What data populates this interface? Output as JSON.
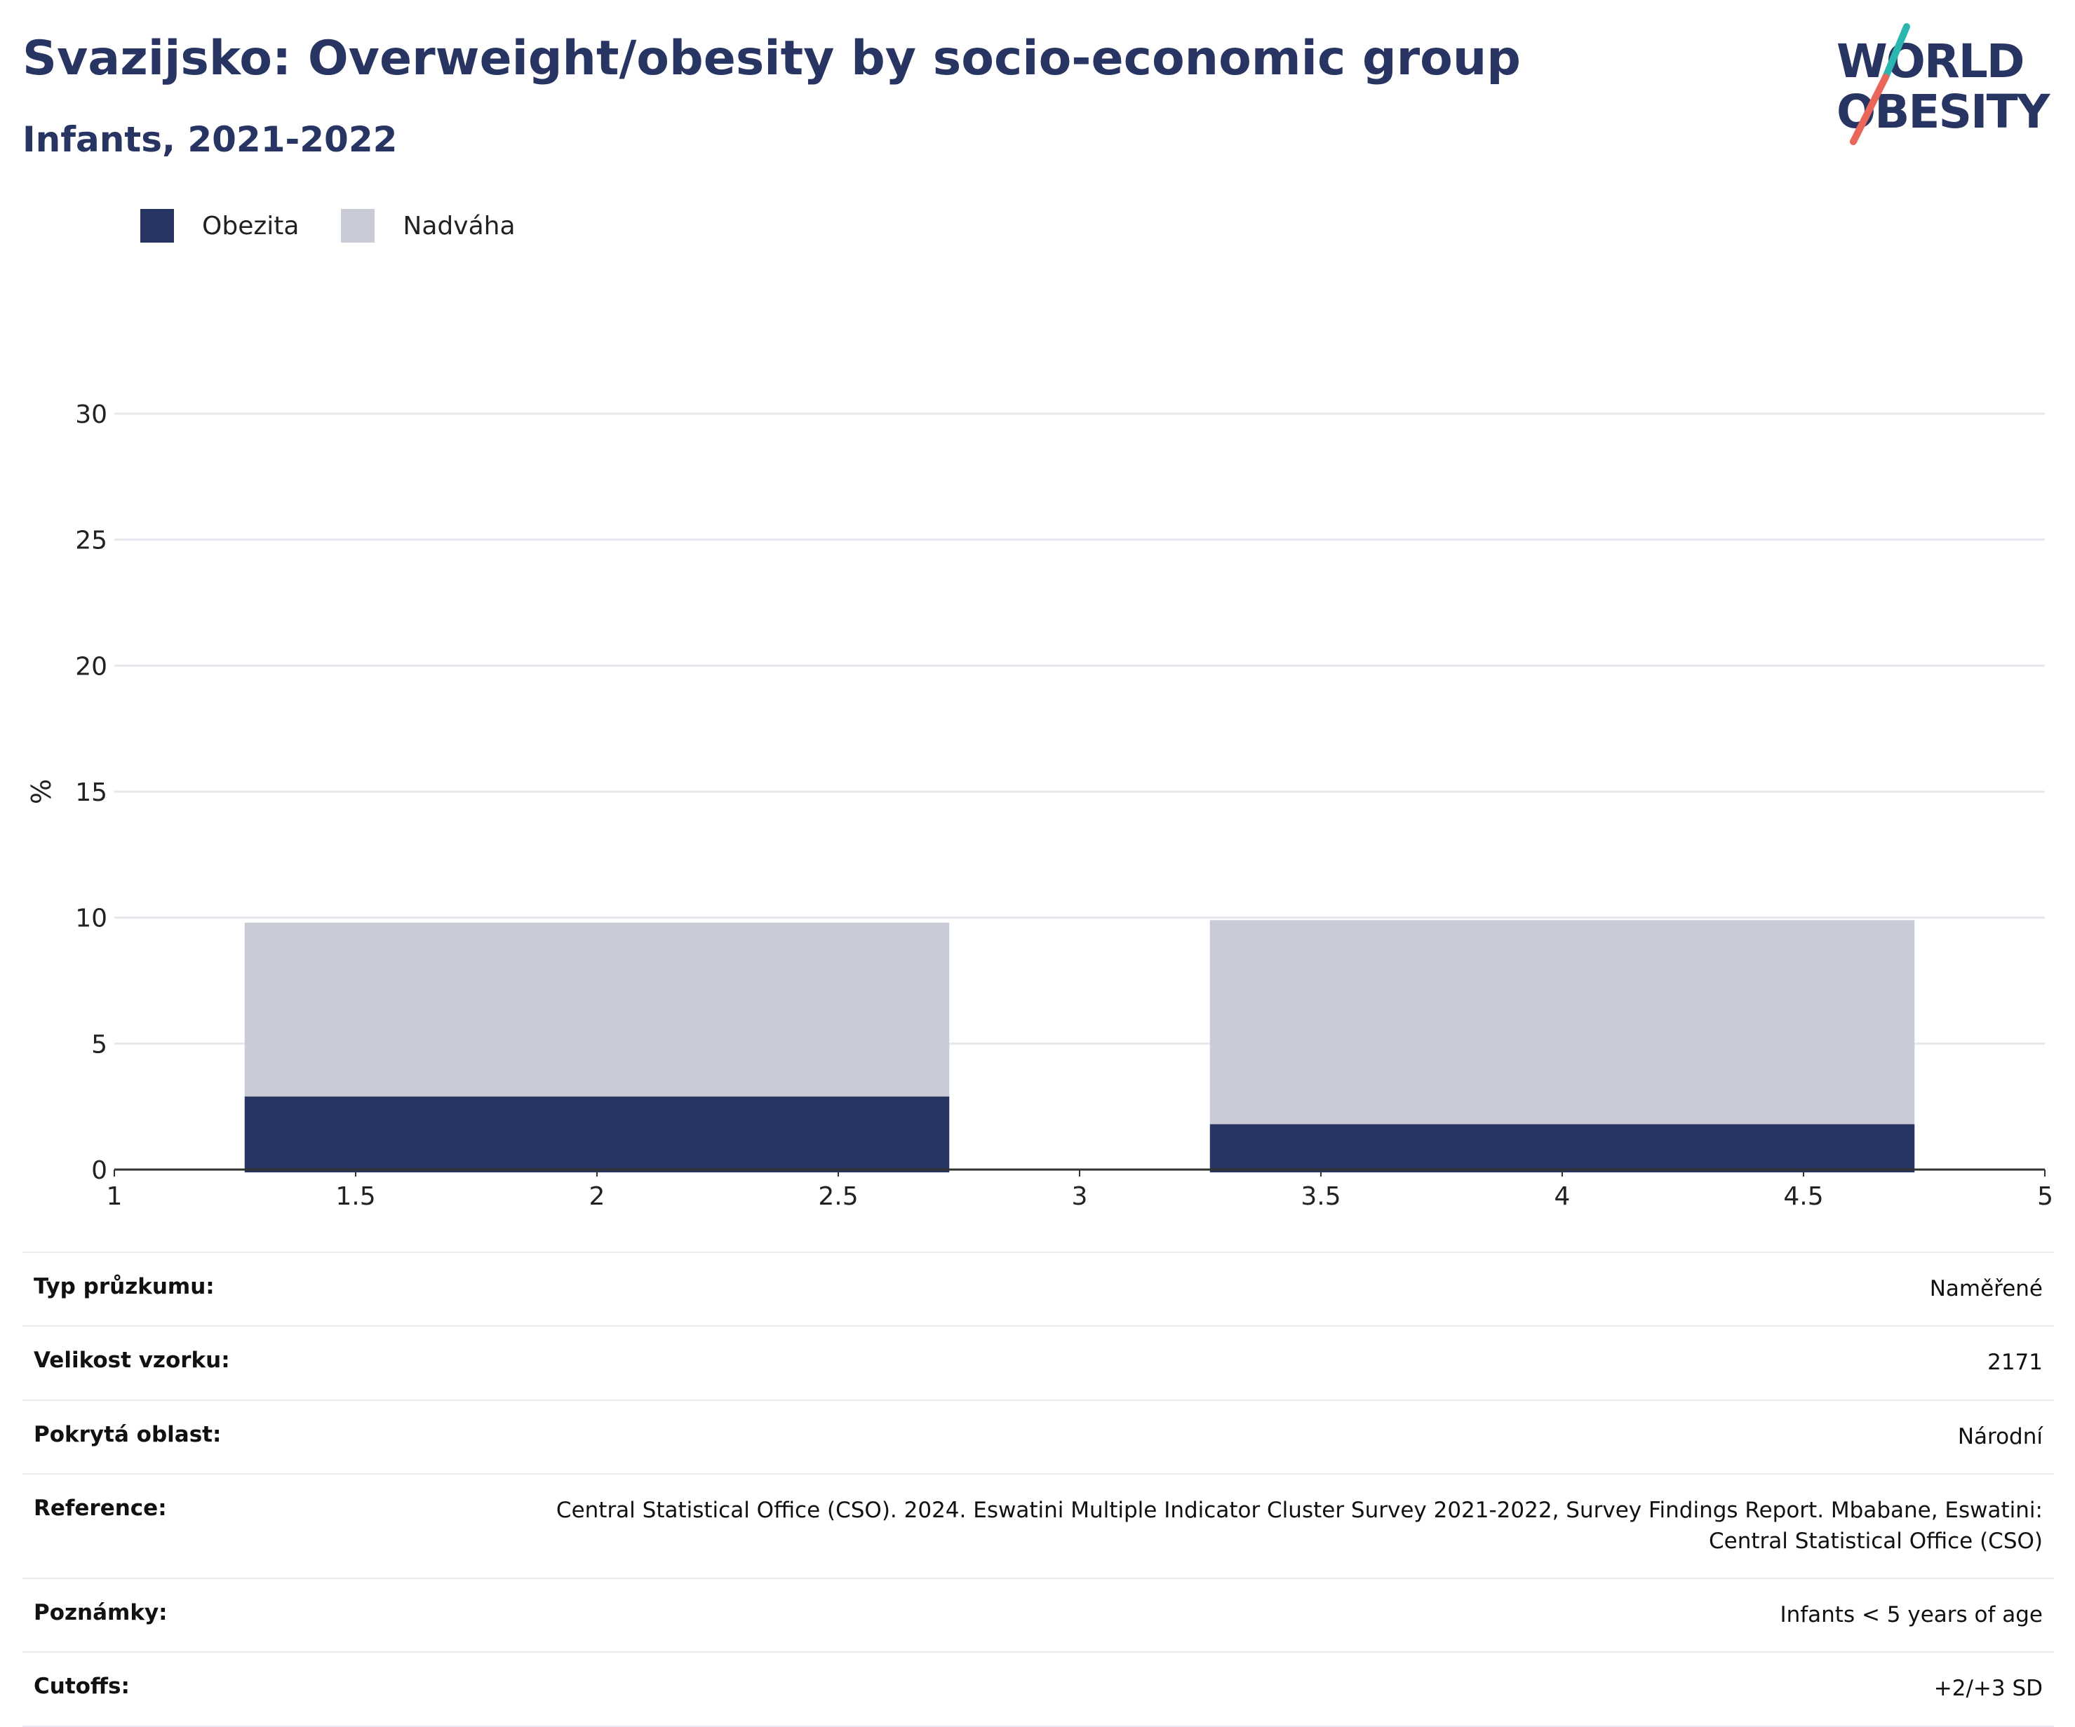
{
  "header": {
    "title": "Svazijsko: Overweight/obesity by socio-economic group",
    "subtitle": "Infants, 2021-2022"
  },
  "logo": {
    "line1": "WORLD",
    "line2": "OBESITY",
    "accent_teal": "#2bb6b0",
    "accent_red": "#e8675a"
  },
  "colors": {
    "obesity": "#283562",
    "overweight": "#c9ccd7",
    "text": "#283562",
    "grid": "#e6e8ee"
  },
  "chart_data": {
    "type": "bar",
    "stacked": true,
    "xlabel": "",
    "ylabel": "%",
    "xlim": [
      1,
      5
    ],
    "ylim": [
      0,
      30
    ],
    "xticks": [
      "1",
      "1.5",
      "2",
      "2.5",
      "3",
      "3.5",
      "4",
      "4.5",
      "5"
    ],
    "yticks": [
      "0",
      "5",
      "10",
      "15",
      "20",
      "25",
      "30"
    ],
    "bars": [
      {
        "x_start": 1.27,
        "x_end": 2.73,
        "obesity": 2.9,
        "overweight": 6.9
      },
      {
        "x_start": 3.27,
        "x_end": 4.73,
        "obesity": 1.8,
        "overweight": 8.1
      }
    ],
    "legend": [
      {
        "name": "Obezita",
        "color": "#283562"
      },
      {
        "name": "Nadváha",
        "color": "#c9ccd7"
      }
    ],
    "legend_position": "top-left",
    "grid": true
  },
  "info": [
    {
      "key": "Typ průzkumu:",
      "value": "Naměřené"
    },
    {
      "key": "Velikost vzorku:",
      "value": "2171"
    },
    {
      "key": "Pokrytá oblast:",
      "value": "Národní"
    },
    {
      "key": "Reference:",
      "value": "Central Statistical Office (CSO). 2024. Eswatini Multiple Indicator Cluster Survey 2021-2022, Survey Findings Report. Mbabane, Eswatini: Central Statistical Office (CSO)"
    },
    {
      "key": "Poznámky:",
      "value": "Infants < 5 years of age"
    },
    {
      "key": "Cutoffs:",
      "value": "+2/+3 SD"
    }
  ]
}
